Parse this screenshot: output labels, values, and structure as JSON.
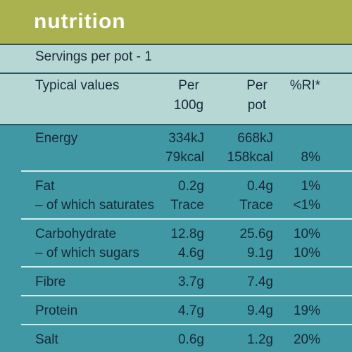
{
  "header": {
    "title": "nutrition"
  },
  "servings": "Servings per pot - 1",
  "columns": {
    "label": "Typical values",
    "per100g": [
      "Per",
      "100g"
    ],
    "perPot": [
      "Per",
      "pot"
    ],
    "ri": "%RI*"
  },
  "groups": [
    [
      {
        "label": "Energy",
        "per100g": "334kJ",
        "perPot": "668kJ"
      },
      {
        "per100g": "79kcal",
        "perPot": "158kcal",
        "ri": "8%"
      }
    ],
    [
      {
        "label": "Fat",
        "per100g": "0.2g",
        "perPot": "0.4g",
        "ri": "1%"
      },
      {
        "label": "– of which saturates",
        "per100g": "Trace",
        "perPot": "Trace",
        "ri": "<1%"
      }
    ],
    [
      {
        "label": "Carbohydrate",
        "per100g": "12.8g",
        "perPot": "25.6g",
        "ri": "10%"
      },
      {
        "label": "– of which sugars",
        "per100g": "4.6g",
        "perPot": "9.1g",
        "ri": "10%"
      }
    ],
    [
      {
        "label": "Fibre",
        "per100g": "3.7g",
        "perPot": "7.4g"
      }
    ],
    [
      {
        "label": "Protein",
        "per100g": "4.7g",
        "perPot": "9.4g",
        "ri": "19%"
      }
    ],
    [
      {
        "label": "Salt",
        "per100g": "0.6g",
        "perPot": "1.2g",
        "ri": "20%"
      }
    ]
  ]
}
